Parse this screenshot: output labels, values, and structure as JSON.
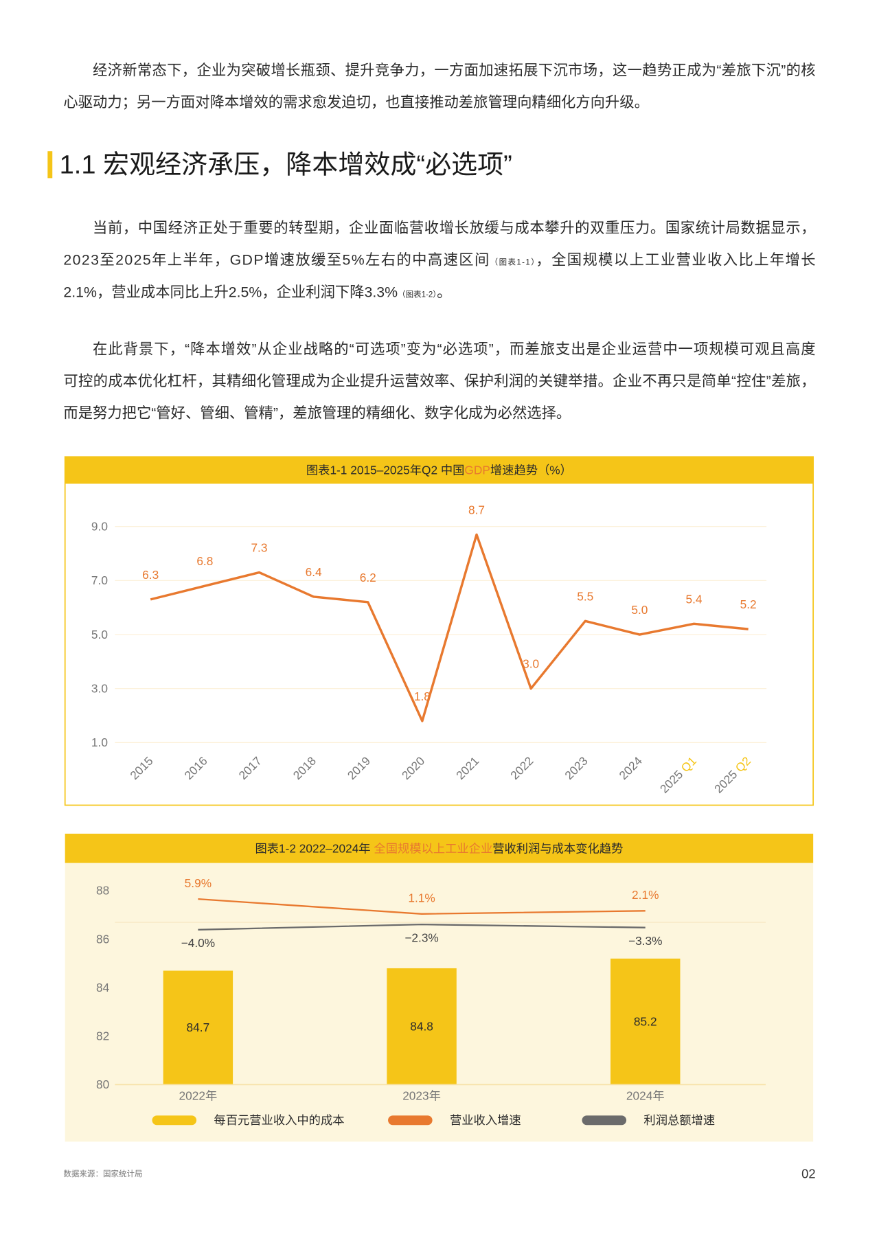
{
  "paragraphs": [
    [
      [
        "经济新常态下，企业为突破增长瓶颈、提升竞争力，一方面加速拓展下沉市场，这一趋势正成为“差旅下沉”的核"
      ],
      [
        "心驱动力；另一方面对降本增效的需求愈发迫切，也直接推动差旅管理向精细化方向升级。"
      ]
    ],
    [
      [
        "当前，中国经济正处于重要的转型期，企业面临营收增长放缓与成本攀升的双重压力。国家统计局数据显示，"
      ],
      [
        "2023至2025年上半年，GDP增速放缓至5%左右的中高速区间",
        "（图表1-1）",
        "，全国规模以上工业营业收入比上年增长"
      ],
      [
        "2.1%，营业成本同比上升2.5%，企业利润下降3.3%",
        "（图表1-2）",
        "。"
      ]
    ],
    [
      [
        "在此背景下，“降本增效”从企业战略的“可选项”变为“必选项”，而差旅支出是企业运营中一项规模可观且高度"
      ],
      [
        "可控的成本优化杠杆，其精细化管理成为企业提升运营效率、保护利润的关键举措。企业不再只是简单“控住”差旅，"
      ],
      [
        "而是努力把它“管好、管细、管精”，差旅管理的精细化、数字化成为必然选择。"
      ]
    ]
  ],
  "heading": "1.1 宏观经济承压，降本增效成“必选项”",
  "chart_data": [
    {
      "type": "line",
      "title": [
        "图表1-1 2015–2025年Q2 中国",
        "GDP",
        "增速趋势（%）"
      ],
      "highlight_color": "#e8792f",
      "categories": [
        "2015",
        "2016",
        "2017",
        "2018",
        "2019",
        "2020",
        "2021",
        "2022",
        "2023",
        "2024",
        "2025 Q1",
        "2025 Q2"
      ],
      "series": [
        {
          "color": "#e8792f",
          "values": [
            6.3,
            6.8,
            7.3,
            6.4,
            6.2,
            1.8,
            8.7,
            3.0,
            5.5,
            5.0,
            5.4,
            5.2
          ],
          "value_labels": [
            "6.3",
            "6.8",
            "7.3",
            "6.4",
            "6.2",
            "1.8",
            "8.7",
            "3.0",
            "5.5",
            "5.0",
            "5.4",
            "5.2"
          ]
        }
      ],
      "ylim": [
        1,
        9
      ],
      "yticks": [
        {
          "value": 1,
          "label": "1.0"
        },
        {
          "value": 3,
          "label": "3.0"
        },
        {
          "value": 5,
          "label": "5.0"
        },
        {
          "value": 7,
          "label": "7.0"
        },
        {
          "value": 9,
          "label": "9.0"
        }
      ],
      "grid": true
    },
    {
      "type": "combo",
      "title": [
        "图表1-2 2022–2024年 ",
        "全国规模以上工业企业",
        "营收利润与成本变化趋势"
      ],
      "highlight_color": "#e8792f",
      "categories": [
        "2022年",
        "2023年",
        "2024年"
      ],
      "series": [
        {
          "name": "每百元营业收入中的成本",
          "type": "bar",
          "color": "#f5c518",
          "values": [
            84.7,
            84.8,
            85.2
          ]
        },
        {
          "name": "营业收入增速",
          "type": "line",
          "axis": "y2",
          "color": "#e8792f",
          "values": [
            5.9,
            1.1,
            2.1
          ],
          "value_labels": [
            "5.9%",
            "1.1%",
            "2.1%"
          ]
        },
        {
          "name": "利润总额增速",
          "type": "line",
          "axis": "y2",
          "color": "#6b6b6b",
          "values": [
            -4.0,
            -2.3,
            -3.3
          ],
          "value_labels": [
            "−4.0%",
            "−2.3%",
            "−3.3%"
          ]
        }
      ],
      "ylim": [
        80,
        88
      ],
      "yticks": [
        80,
        82,
        84,
        86,
        88
      ],
      "y2lim": [
        -54,
        8.6
      ],
      "grid": false,
      "legend": "bottom"
    }
  ],
  "footer": {
    "source": "数据来源：国家统计局",
    "page_number": "02"
  }
}
